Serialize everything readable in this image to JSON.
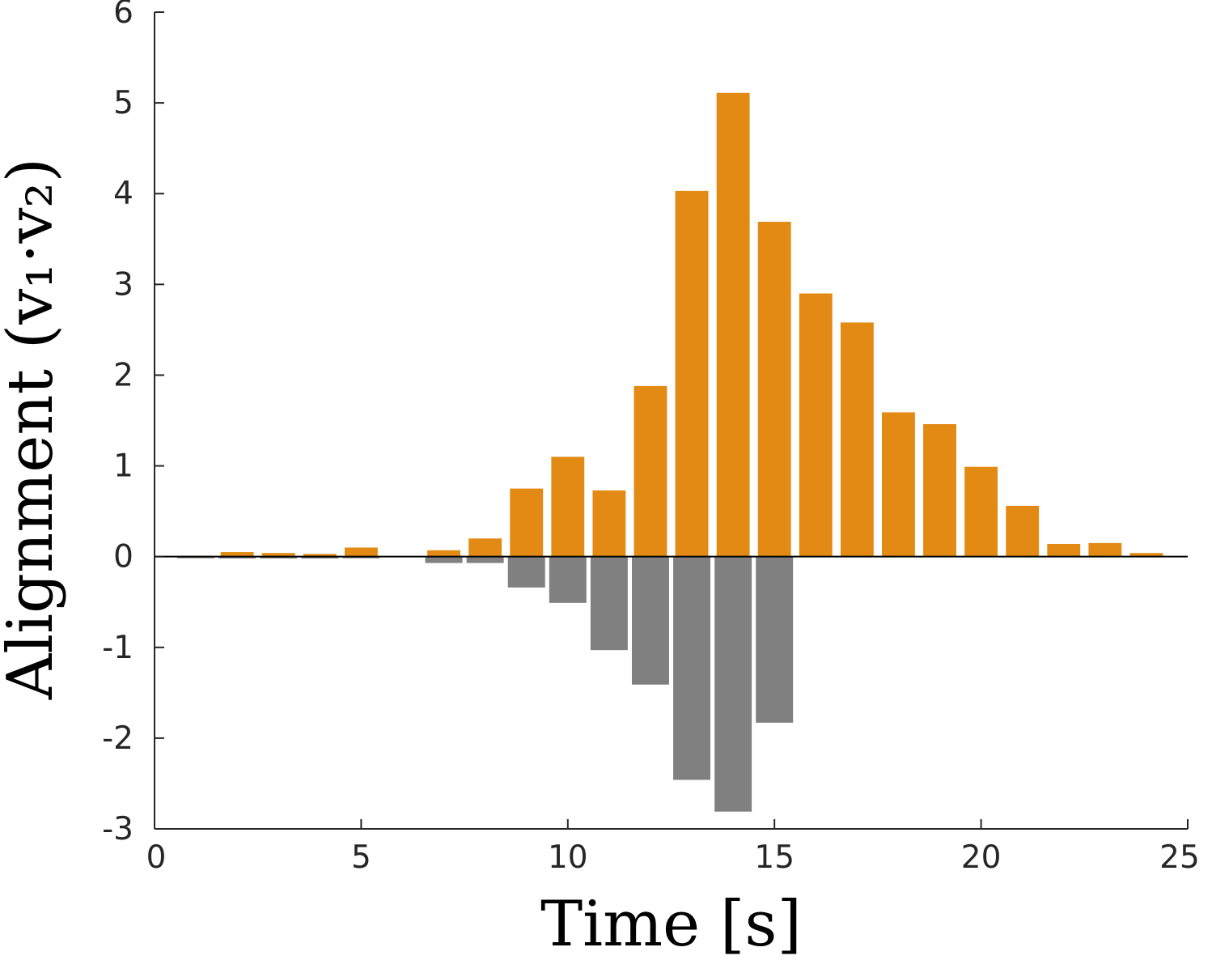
{
  "chart_data": {
    "type": "bar",
    "xlabel": "Time [s]",
    "ylabel": "Alignment (v₁·v₂)",
    "xlim": [
      0,
      25
    ],
    "ylim": [
      -3,
      6
    ],
    "xticks": [
      0,
      5,
      10,
      15,
      20,
      25
    ],
    "yticks": [
      -3,
      -2,
      -1,
      0,
      1,
      2,
      3,
      4,
      5,
      6
    ],
    "grid": false,
    "legend": "none",
    "x": [
      1,
      2,
      3,
      4,
      5,
      6,
      7,
      8,
      9,
      10,
      11,
      12,
      13,
      14,
      15,
      16,
      17,
      18,
      19,
      20,
      21,
      22,
      23,
      24
    ],
    "series": [
      {
        "color": "#E28A13",
        "values": [
          0.01,
          0.05,
          0.04,
          0.03,
          0.1,
          0.0,
          0.07,
          0.2,
          0.75,
          1.1,
          0.73,
          1.88,
          4.03,
          5.11,
          3.69,
          2.9,
          2.58,
          1.59,
          1.46,
          0.99,
          0.56,
          0.14,
          0.15,
          0.04
        ]
      },
      {
        "color": "#808080",
        "values": [
          -0.01,
          -0.02,
          -0.02,
          -0.02,
          -0.01,
          0.0,
          -0.07,
          -0.07,
          -0.34,
          -0.51,
          -1.03,
          -1.41,
          -2.46,
          -2.81,
          -1.83,
          0,
          0,
          0,
          0,
          0,
          0,
          0,
          0,
          0
        ]
      }
    ]
  }
}
